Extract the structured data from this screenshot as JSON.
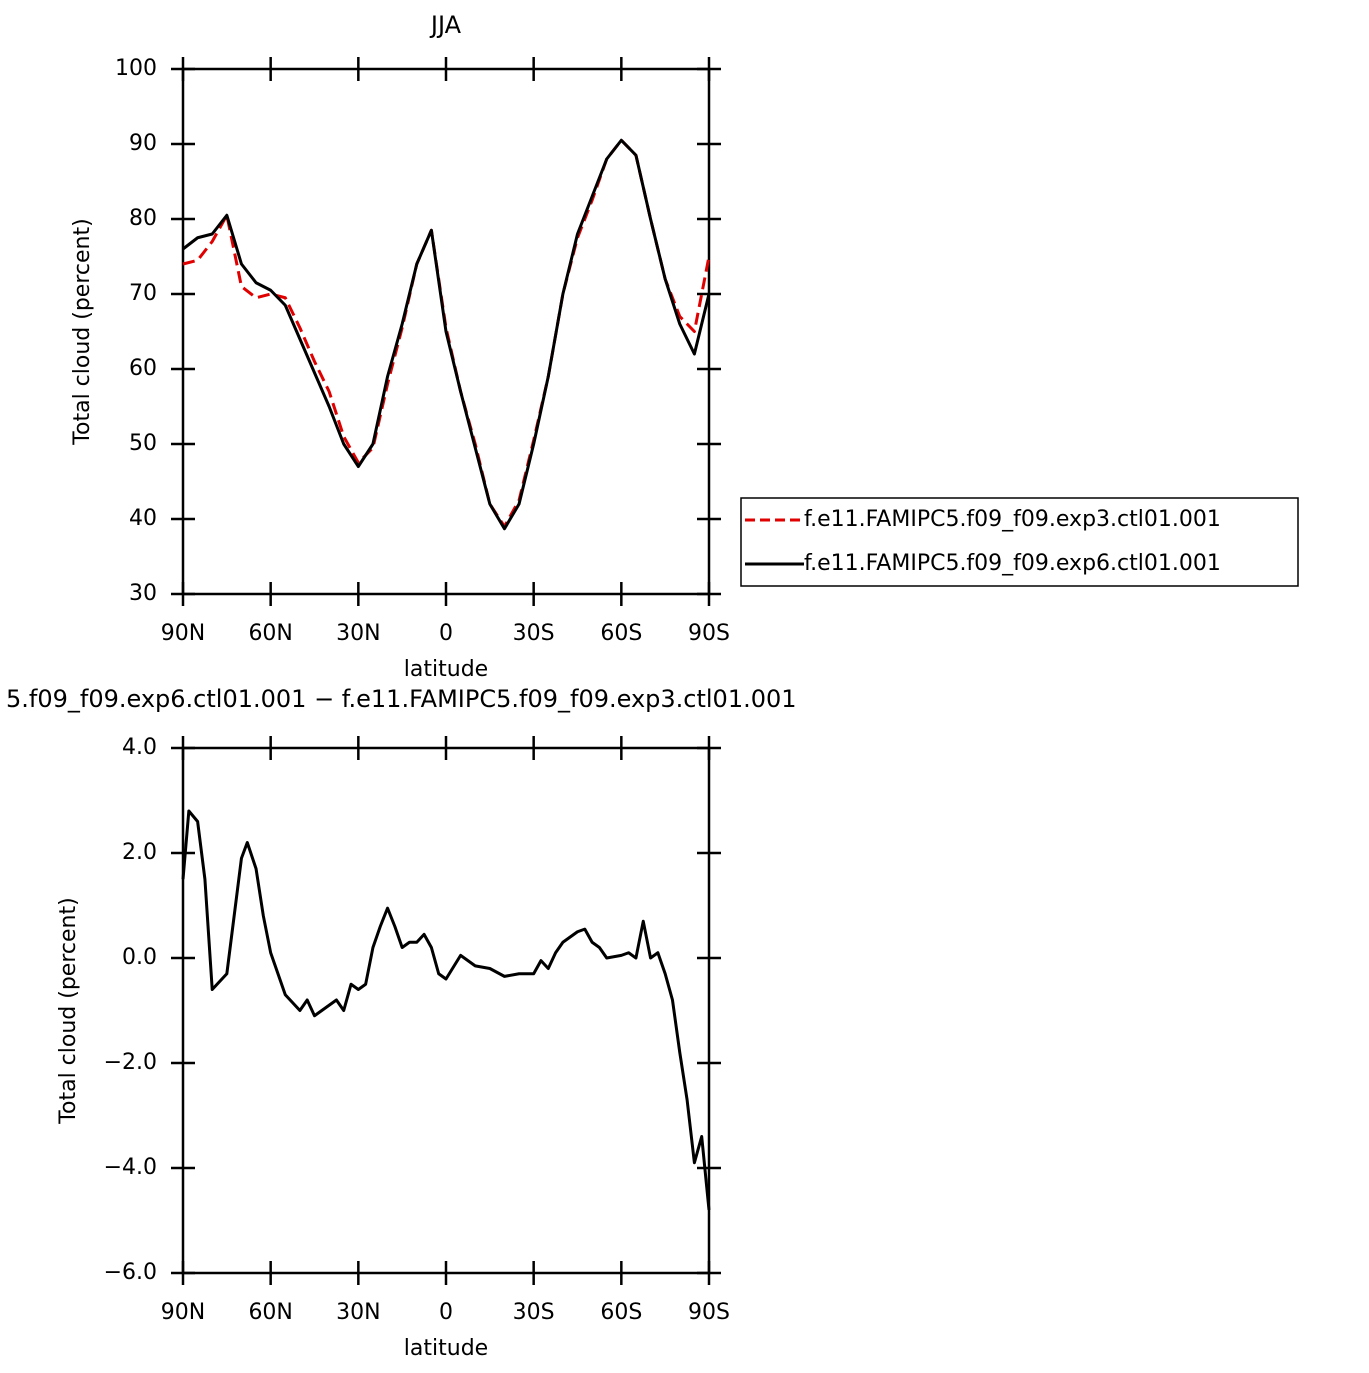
{
  "chart_data": [
    {
      "type": "line",
      "title": "JJA",
      "ylabel": "Total cloud (percent)",
      "xlabel": "latitude",
      "x": [
        90,
        85,
        80,
        75,
        70,
        65,
        60,
        55,
        50,
        45,
        40,
        35,
        30,
        25,
        20,
        15,
        10,
        5,
        0,
        -5,
        -10,
        -15,
        -20,
        -25,
        -30,
        -35,
        -40,
        -45,
        -50,
        -55,
        -60,
        -65,
        -70,
        -75,
        -80,
        -85,
        -90
      ],
      "xlim": [
        90,
        -90
      ],
      "xticks": [
        {
          "value": 90,
          "label": "90N"
        },
        {
          "value": 60,
          "label": "60N"
        },
        {
          "value": 30,
          "label": "30N"
        },
        0,
        {
          "value": -30,
          "label": "30S"
        },
        {
          "value": -60,
          "label": "60S"
        },
        {
          "value": -90,
          "label": "90S"
        }
      ],
      "ylim": [
        30,
        100
      ],
      "yticks": [
        30,
        40,
        50,
        60,
        70,
        80,
        90,
        100
      ],
      "series": [
        {
          "name": "f.e11.FAMIPC5.f09_f09.exp3.ctl01.001",
          "color": "#e00000",
          "dash": true,
          "values": [
            74,
            74.5,
            77,
            80.5,
            71,
            69.5,
            70,
            69.5,
            65.5,
            61,
            57,
            51,
            47.5,
            49.5,
            58,
            65.5,
            74,
            78.5,
            65.5,
            57,
            50,
            42,
            39,
            42.5,
            50.5,
            59,
            70,
            77.5,
            82.5,
            88,
            90.5,
            88.5,
            80,
            72,
            67,
            65,
            75
          ]
        },
        {
          "name": "f.e11.FAMIPC5.f09_f09.exp6.ctl01.001",
          "color": "#000000",
          "dash": false,
          "values": [
            76,
            77.5,
            78,
            80.5,
            74,
            71.5,
            70.5,
            68.5,
            64,
            59.5,
            55,
            50,
            47,
            50,
            59,
            66,
            74,
            78.5,
            65,
            57,
            49.5,
            42,
            38.7,
            42,
            50,
            59,
            70,
            78,
            83,
            88,
            90.5,
            88.5,
            80,
            72,
            66,
            62,
            70
          ]
        }
      ]
    },
    {
      "type": "line",
      "title": "5.f09_f09.exp6.ctl01.001 − f.e11.FAMIPC5.f09_f09.exp3.ctl01.001",
      "ylabel": "Total cloud (percent)",
      "xlabel": "latitude",
      "x": [
        90,
        88,
        85,
        82.5,
        80,
        75,
        72.5,
        70,
        68,
        65,
        62.5,
        60,
        55,
        50,
        47.5,
        45,
        40,
        37.5,
        35,
        32.5,
        30,
        27.5,
        25,
        22.5,
        20,
        17.5,
        15,
        12.5,
        10,
        7.5,
        5,
        2.5,
        0,
        -5,
        -10,
        -15,
        -20,
        -25,
        -30,
        -32.5,
        -35,
        -37.5,
        -40,
        -45,
        -47.5,
        -50,
        -52.5,
        -55,
        -60,
        -62.5,
        -65,
        -67.5,
        -70,
        -72.5,
        -75,
        -77.5,
        -80,
        -82.5,
        -85,
        -87.5,
        -90
      ],
      "xlim": [
        90,
        -90
      ],
      "xticks": [
        {
          "value": 90,
          "label": "90N"
        },
        {
          "value": 60,
          "label": "60N"
        },
        {
          "value": 30,
          "label": "30N"
        },
        0,
        {
          "value": -30,
          "label": "30S"
        },
        {
          "value": -60,
          "label": "60S"
        },
        {
          "value": -90,
          "label": "90S"
        }
      ],
      "ylim": [
        -6,
        4
      ],
      "yticks": [
        {
          "value": -6,
          "label": "−6.0"
        },
        {
          "value": -4,
          "label": "−4.0"
        },
        {
          "value": -2,
          "label": "−2.0"
        },
        {
          "value": 0,
          "label": "0.0"
        },
        {
          "value": 2,
          "label": "2.0"
        },
        {
          "value": 4,
          "label": "4.0"
        }
      ],
      "color": "#000000",
      "values": [
        1.5,
        2.8,
        2.6,
        1.5,
        -0.6,
        -0.3,
        0.8,
        1.9,
        2.2,
        1.7,
        0.8,
        0.1,
        -0.7,
        -1.0,
        -0.8,
        -1.1,
        -0.9,
        -0.8,
        -1.0,
        -0.5,
        -0.6,
        -0.5,
        0.2,
        0.6,
        0.95,
        0.6,
        0.2,
        0.3,
        0.3,
        0.45,
        0.2,
        -0.3,
        -0.4,
        0.05,
        -0.15,
        -0.2,
        -0.35,
        -0.3,
        -0.3,
        -0.05,
        -0.2,
        0.1,
        0.3,
        0.5,
        0.55,
        0.3,
        0.2,
        0.0,
        0.05,
        0.1,
        0.0,
        0.7,
        0.0,
        0.1,
        -0.3,
        -0.8,
        -1.8,
        -2.7,
        -3.9,
        -3.4,
        -4.8
      ]
    }
  ]
}
